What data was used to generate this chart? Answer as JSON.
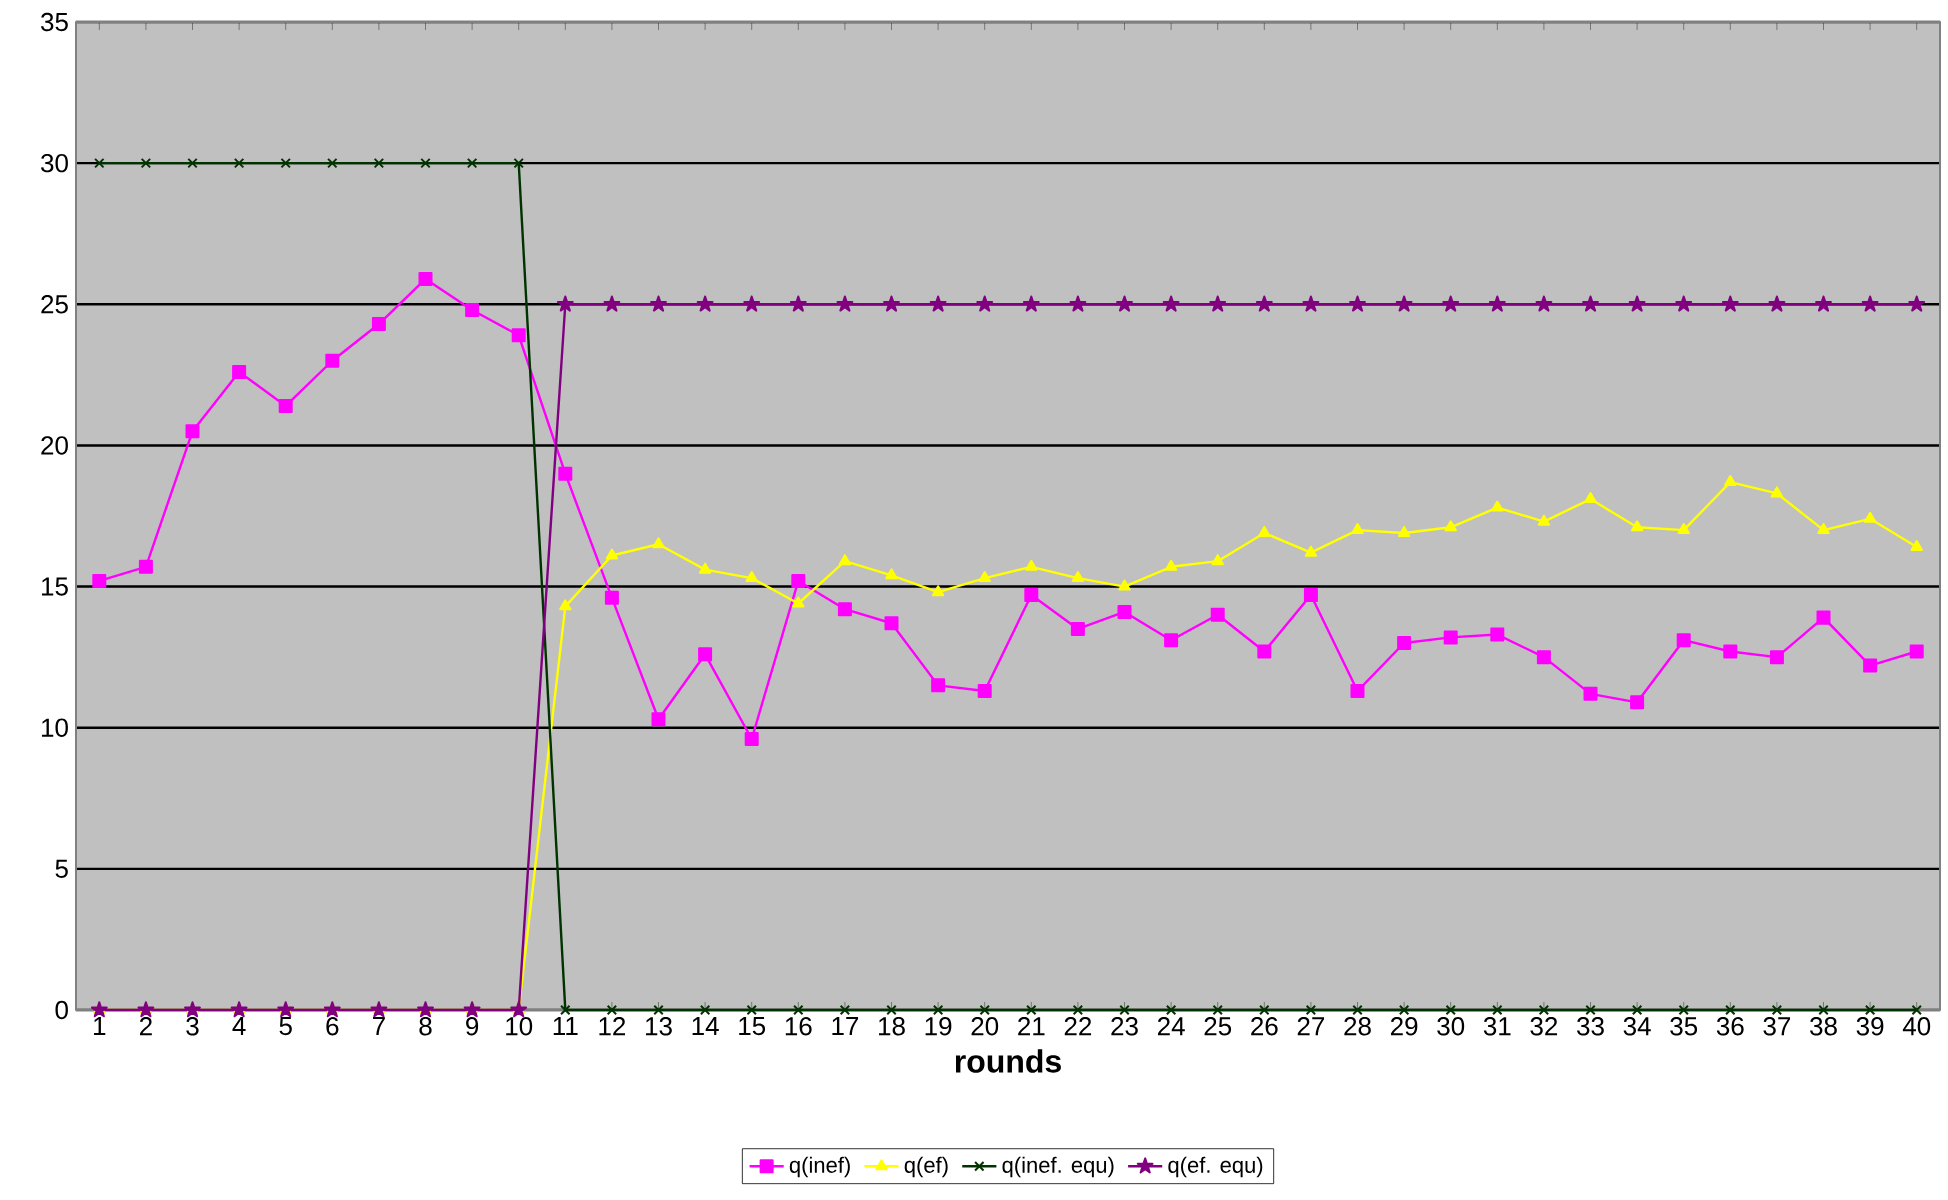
{
  "chart_data": {
    "type": "line",
    "xlabel": "rounds",
    "categories": [
      "1",
      "2",
      "3",
      "4",
      "5",
      "6",
      "7",
      "8",
      "9",
      "10",
      "11",
      "12",
      "13",
      "14",
      "15",
      "16",
      "17",
      "18",
      "19",
      "20",
      "21",
      "22",
      "23",
      "24",
      "25",
      "26",
      "27",
      "28",
      "29",
      "30",
      "31",
      "32",
      "33",
      "34",
      "35",
      "36",
      "37",
      "38",
      "39",
      "40"
    ],
    "series": [
      {
        "name": "q(inef)",
        "color": "#ff00ff",
        "marker": "square",
        "values": [
          15.2,
          15.7,
          20.5,
          22.6,
          21.4,
          23.0,
          24.3,
          25.9,
          24.8,
          23.9,
          19.0,
          14.6,
          10.3,
          12.6,
          9.6,
          15.2,
          14.2,
          13.7,
          11.5,
          11.3,
          14.7,
          13.5,
          14.1,
          13.1,
          14.0,
          12.7,
          14.7,
          11.3,
          13.0,
          13.2,
          13.3,
          12.5,
          11.2,
          10.9,
          13.1,
          12.7,
          12.5,
          13.9,
          12.2,
          12.7
        ]
      },
      {
        "name": "q(ef)",
        "color": "#ffff00",
        "marker": "triangle",
        "values": [
          0,
          0,
          0,
          0,
          0,
          0,
          0,
          0,
          0,
          0,
          14.3,
          16.1,
          16.5,
          15.6,
          15.3,
          14.4,
          15.9,
          15.4,
          14.8,
          15.3,
          15.7,
          15.3,
          15.0,
          15.7,
          15.9,
          16.9,
          16.2,
          17.0,
          16.9,
          17.1,
          17.8,
          17.3,
          18.1,
          17.1,
          17.0,
          18.7,
          18.3,
          17.0,
          17.4,
          16.4
        ]
      },
      {
        "name": "q(inef. equ)",
        "color": "#003300",
        "marker": "cross",
        "values": [
          30,
          30,
          30,
          30,
          30,
          30,
          30,
          30,
          30,
          30,
          0,
          0,
          0,
          0,
          0,
          0,
          0,
          0,
          0,
          0,
          0,
          0,
          0,
          0,
          0,
          0,
          0,
          0,
          0,
          0,
          0,
          0,
          0,
          0,
          0,
          0,
          0,
          0,
          0,
          0
        ]
      },
      {
        "name": "q(ef. equ)",
        "color": "#800080",
        "marker": "star",
        "values": [
          0,
          0,
          0,
          0,
          0,
          0,
          0,
          0,
          0,
          0,
          25,
          25,
          25,
          25,
          25,
          25,
          25,
          25,
          25,
          25,
          25,
          25,
          25,
          25,
          25,
          25,
          25,
          25,
          25,
          25,
          25,
          25,
          25,
          25,
          25,
          25,
          25,
          25,
          25,
          25
        ]
      }
    ],
    "ylim": [
      0,
      35
    ],
    "yticks": [
      0,
      5,
      10,
      15,
      20,
      25,
      30,
      35
    ],
    "grid": "y",
    "legend": "bottom",
    "line_style": "solid"
  }
}
